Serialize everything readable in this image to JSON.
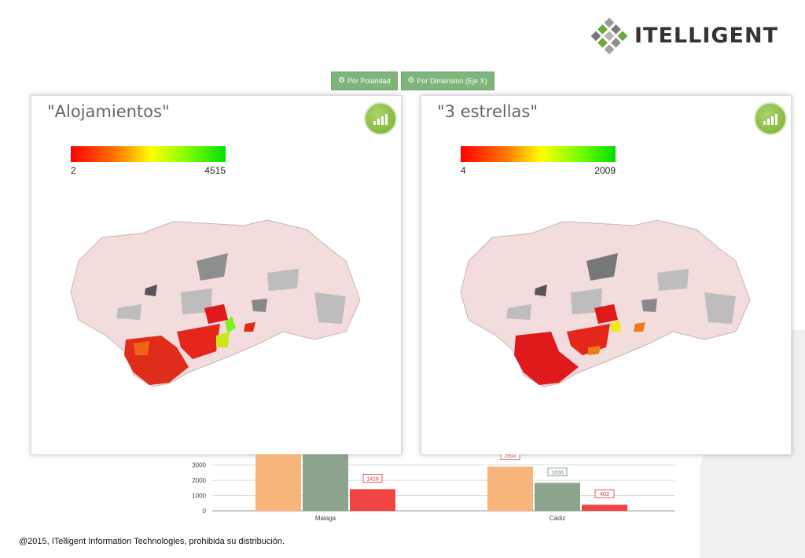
{
  "header": {
    "logo_text": "ITELLIGENT"
  },
  "toolbar": {
    "btn_polaridad": "Por Polaridad",
    "btn_dimension": "Por Dimension (Eje X)"
  },
  "panels": [
    {
      "title": "\"Alojamientos\"",
      "legend_min": "2",
      "legend_max": "4515"
    },
    {
      "title": "\"3 estrellas\"",
      "legend_min": "4",
      "legend_max": "2009"
    }
  ],
  "chart_data": {
    "type": "bar",
    "categories": [
      "Málaga",
      "Cádiz"
    ],
    "y_ticks": [
      "0",
      "1000",
      "2000",
      "3000"
    ],
    "ylim": [
      0,
      3700
    ],
    "series": [
      {
        "values": [
          3700,
          2894
        ],
        "color": "#f7b57c"
      },
      {
        "values": [
          3700,
          1830
        ],
        "color": "#8ca38e"
      },
      {
        "values": [
          1418,
          402
        ],
        "color": "#f04444"
      }
    ],
    "data_labels": [
      "1418",
      "2894",
      "1830",
      "402"
    ]
  },
  "footer": {
    "text": "@2015, ITelligent Information Technologies, prohibida su distribución."
  }
}
